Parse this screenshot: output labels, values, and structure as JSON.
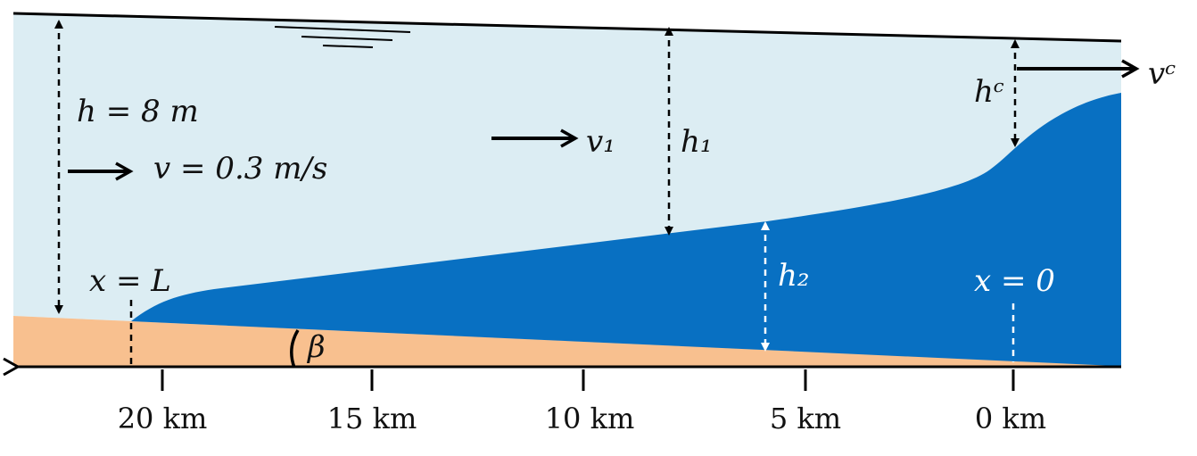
{
  "labels": {
    "depth": "h = 8 m",
    "velocity": "v = 0.3 m/s",
    "v1": "v₁",
    "h1": "h₁",
    "h2": "h₂",
    "hc": "hᶜ",
    "vc": "vᶜ",
    "x_L": "x = L",
    "x_0": "x = 0",
    "beta": "β"
  },
  "axis": {
    "ticks": [
      "20 km",
      "15 km",
      "10 km",
      "5 km",
      "0 km"
    ]
  },
  "colors": {
    "upper_water": "#dcedf3",
    "lower_layer": "#0870c2",
    "seabed": "#f8c08f",
    "line": "#000000"
  }
}
